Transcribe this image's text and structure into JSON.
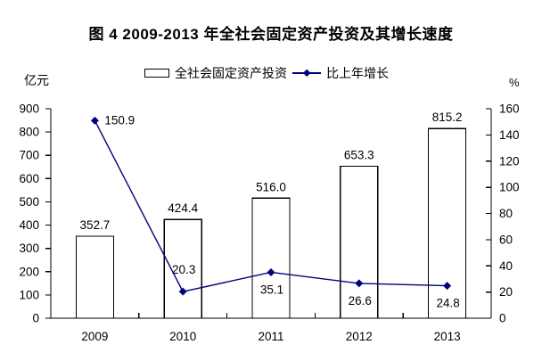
{
  "title": "图 4  2009-2013 年全社会固定资产投资及其增长速度",
  "legend": {
    "bar_label": "全社会固定资产投资",
    "line_label": "比上年增长"
  },
  "colors": {
    "line": "#000080",
    "bar_fill": "#ffffff",
    "bar_border": "#000000",
    "axis": "#000000",
    "text": "#000000",
    "background": "#ffffff"
  },
  "chart_data": {
    "type": "bar+line",
    "title": "图 4  2009-2013 年全社会固定资产投资及其增长速度",
    "categories": [
      "2009",
      "2010",
      "2011",
      "2012",
      "2013"
    ],
    "series": [
      {
        "name": "全社会固定资产投资",
        "type": "bar",
        "axis": "left",
        "unit": "亿元",
        "values": [
          352.7,
          424.4,
          516.0,
          653.3,
          815.2
        ],
        "labels": [
          "352.7",
          "424.4",
          "516.0",
          "653.3",
          "815.2"
        ]
      },
      {
        "name": "比上年增长",
        "type": "line",
        "axis": "right",
        "unit": "%",
        "values": [
          150.9,
          20.3,
          35.1,
          26.6,
          24.8
        ],
        "labels": [
          "150.9",
          "20.3",
          "35.1",
          "26.6",
          "24.8"
        ],
        "label_positions": [
          "right",
          "above",
          "below",
          "below",
          "below"
        ]
      }
    ],
    "left_axis": {
      "unit": "亿元",
      "min": 0,
      "max": 900,
      "step": 100
    },
    "right_axis": {
      "unit": "%",
      "min": 0,
      "max": 160,
      "step": 20
    },
    "grid": false,
    "legend_position": "top"
  }
}
